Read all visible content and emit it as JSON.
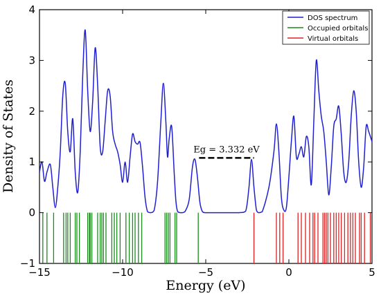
{
  "chart_data": {
    "type": "line",
    "title": "",
    "xlabel": "Energy (eV)",
    "ylabel": "Density of States",
    "xlim": [
      -15,
      5
    ],
    "ylim": [
      -1,
      4
    ],
    "xticks": [
      -15,
      -10,
      -5,
      0,
      5
    ],
    "yticks": [
      -1,
      0,
      1,
      2,
      3,
      4
    ],
    "xtick_labels": [
      "−15",
      "−10",
      "−5",
      "0",
      "5"
    ],
    "ytick_labels": [
      "−1",
      "0",
      "1",
      "2",
      "3",
      "4"
    ],
    "grid": false,
    "legend_position": "top-right",
    "colors": {
      "dos": "#1f1fd0",
      "occupied": "#1a8a1a",
      "virtual": "#e02020",
      "axis": "#000000"
    },
    "series": [
      {
        "name": "DOS spectrum",
        "kind": "curve",
        "x": [
          -15,
          -14.85,
          -14.7,
          -14.55,
          -14.35,
          -14.2,
          -14.05,
          -13.9,
          -13.75,
          -13.6,
          -13.45,
          -13.3,
          -13.15,
          -13.0,
          -12.85,
          -12.7,
          -12.55,
          -12.4,
          -12.25,
          -12.1,
          -11.95,
          -11.8,
          -11.65,
          -11.5,
          -11.35,
          -11.2,
          -11.05,
          -10.9,
          -10.75,
          -10.6,
          -10.45,
          -10.3,
          -10.15,
          -10.0,
          -9.85,
          -9.7,
          -9.55,
          -9.4,
          -9.25,
          -9.1,
          -8.95,
          -8.8,
          -8.65,
          -8.5,
          -8.3,
          -8.1,
          -7.9,
          -7.7,
          -7.55,
          -7.4,
          -7.3,
          -7.2,
          -7.05,
          -6.9,
          -6.8,
          -6.7,
          -6.55,
          -6.4,
          -6.25,
          -6.0,
          -5.8,
          -5.65,
          -5.5,
          -5.35,
          -5.2,
          -5.05,
          -4.9,
          -4.7,
          -4.0,
          -3.0,
          -2.6,
          -2.4,
          -2.25,
          -2.1,
          -1.95,
          -1.8,
          -1.6,
          -1.2,
          -0.9,
          -0.75,
          -0.6,
          -0.45,
          -0.3,
          -0.15,
          0.0,
          0.15,
          0.3,
          0.45,
          0.6,
          0.75,
          0.9,
          1.05,
          1.2,
          1.35,
          1.5,
          1.65,
          1.8,
          1.95,
          2.1,
          2.25,
          2.4,
          2.55,
          2.7,
          2.85,
          3.0,
          3.15,
          3.3,
          3.45,
          3.6,
          3.75,
          3.9,
          4.05,
          4.2,
          4.35,
          4.5,
          4.65,
          4.8,
          5.0
        ],
        "y": [
          0.8,
          1.0,
          0.62,
          0.8,
          0.95,
          0.5,
          0.1,
          0.5,
          1.2,
          2.3,
          2.55,
          1.6,
          1.2,
          1.85,
          0.8,
          0.4,
          1.2,
          2.7,
          3.6,
          2.4,
          1.6,
          2.2,
          3.25,
          2.5,
          1.3,
          1.2,
          1.8,
          2.4,
          2.3,
          1.6,
          1.35,
          1.2,
          0.95,
          0.6,
          1.0,
          0.6,
          1.1,
          1.55,
          1.4,
          1.35,
          1.38,
          0.9,
          0.3,
          0.02,
          0.0,
          0.05,
          0.6,
          1.8,
          2.55,
          1.8,
          1.1,
          1.45,
          1.7,
          0.8,
          0.25,
          0.03,
          0.0,
          0.0,
          0.02,
          0.25,
          0.9,
          1.05,
          0.7,
          0.2,
          0.02,
          0.0,
          0.0,
          0.0,
          0.0,
          0.0,
          0.03,
          0.5,
          1.05,
          0.5,
          0.05,
          0.0,
          0.02,
          0.5,
          1.2,
          1.75,
          1.2,
          0.3,
          0.05,
          0.1,
          0.7,
          1.4,
          1.9,
          1.1,
          1.15,
          1.3,
          1.1,
          1.5,
          1.3,
          0.55,
          1.8,
          3.0,
          2.4,
          1.9,
          1.6,
          1.0,
          0.35,
          0.9,
          1.7,
          1.85,
          2.1,
          1.55,
          0.8,
          0.6,
          1.0,
          1.9,
          2.4,
          2.0,
          1.0,
          0.5,
          0.9,
          1.7,
          1.6,
          1.4
        ],
        "color": "#1f1fd0"
      },
      {
        "name": "Occupied orbitals",
        "kind": "sticks",
        "y_range": [
          -1,
          0
        ],
        "x": [
          -14.8,
          -14.55,
          -14.15,
          -13.55,
          -13.4,
          -13.3,
          -13.15,
          -12.85,
          -12.75,
          -12.6,
          -12.1,
          -12.0,
          -11.95,
          -11.85,
          -11.5,
          -11.35,
          -11.25,
          -11.15,
          -11.0,
          -10.65,
          -10.5,
          -10.35,
          -10.15,
          -9.8,
          -9.6,
          -9.4,
          -9.25,
          -9.05,
          -8.85,
          -7.45,
          -7.35,
          -7.25,
          -7.15,
          -6.85,
          -6.75,
          -5.45
        ],
        "color": "#1a8a1a"
      },
      {
        "name": "Virtual orbitals",
        "kind": "sticks",
        "y_range": [
          -1,
          0
        ],
        "x": [
          -2.1,
          -0.75,
          -0.55,
          -0.35,
          0.55,
          0.75,
          1.0,
          1.25,
          1.45,
          1.55,
          1.75,
          2.05,
          2.15,
          2.25,
          2.35,
          2.5,
          2.7,
          2.85,
          3.0,
          3.15,
          3.35,
          3.55,
          3.7,
          3.85,
          4.0,
          4.25,
          4.35,
          4.55,
          4.9
        ],
        "color": "#e02020"
      }
    ],
    "annotations": [
      {
        "text": "Eg = 3.332 eV",
        "x_start": -5.4,
        "x_end": -2.1,
        "y": 1.08
      }
    ]
  }
}
